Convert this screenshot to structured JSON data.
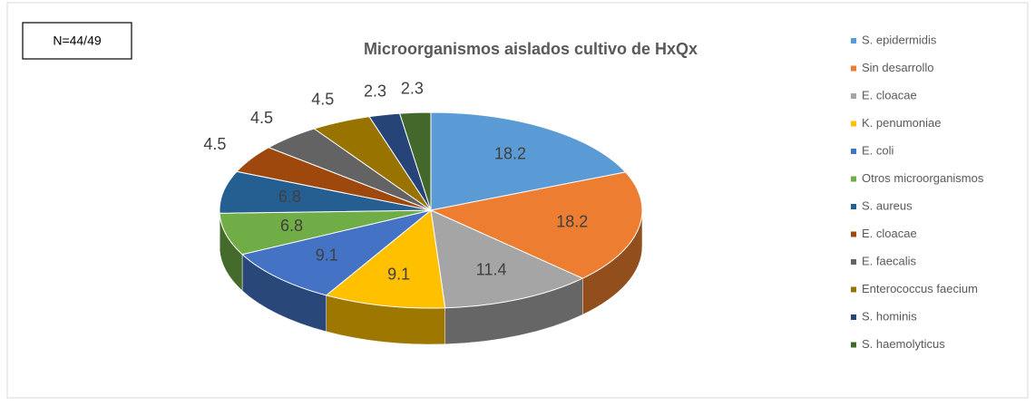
{
  "chart_data": {
    "type": "pie3d",
    "title": "Microorganismos aislados cultivo de HxQx",
    "annotation": "N=44/49",
    "categories": [
      "S. epidermidis",
      "Sin desarrollo",
      "E. cloacae",
      "K. penumoniae",
      "E. coli",
      "Otros microorganismos",
      "S. aureus",
      "E. cloacae",
      "E. faecalis",
      "Enterococcus faecium",
      "S. hominis",
      "S. haemolyticus"
    ],
    "values": [
      18.2,
      18.2,
      11.4,
      9.1,
      9.1,
      6.8,
      6.8,
      4.5,
      4.5,
      4.5,
      2.3,
      2.3
    ],
    "colors": [
      "#5b9bd5",
      "#ed7d31",
      "#a5a5a5",
      "#ffc000",
      "#4472c4",
      "#70ad47",
      "#255e91",
      "#9e480e",
      "#636363",
      "#997300",
      "#264478",
      "#43682b"
    ],
    "legend": "right"
  }
}
